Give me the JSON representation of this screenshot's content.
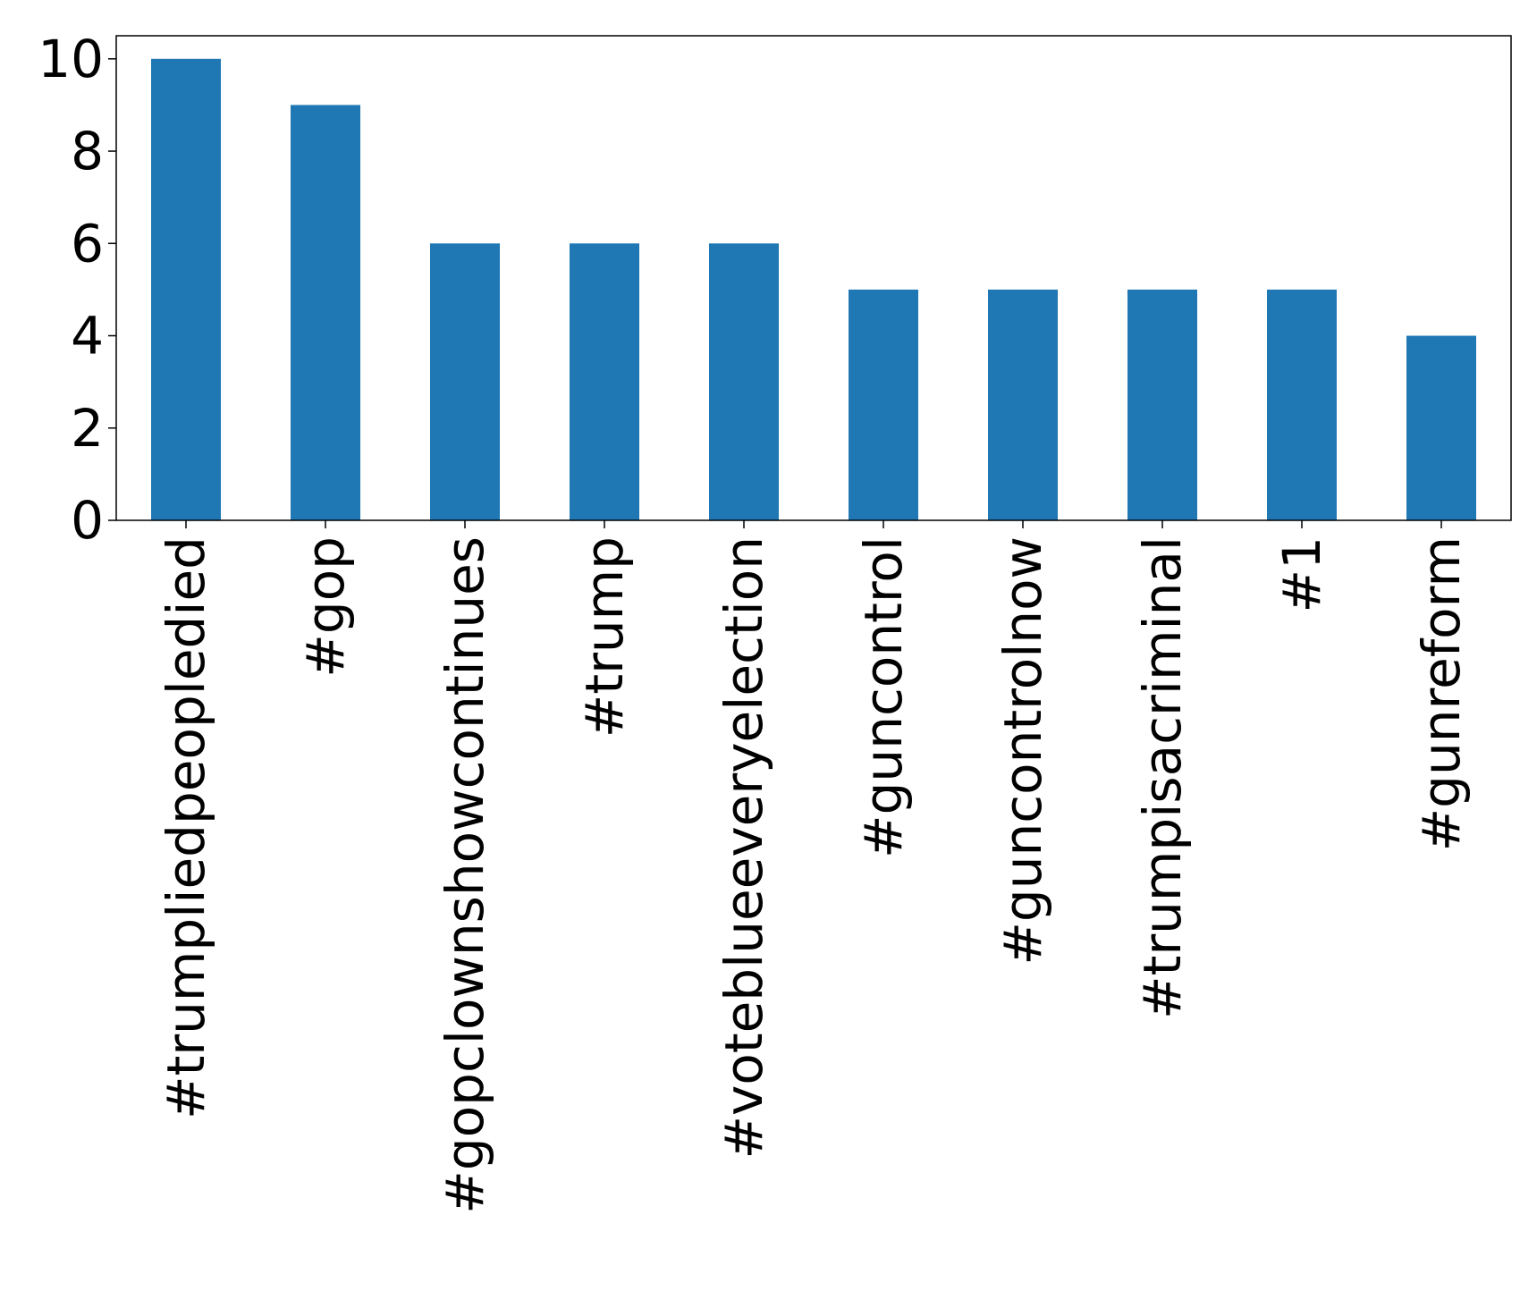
{
  "chart_data": {
    "type": "bar",
    "title": "",
    "xlabel": "",
    "ylabel": "",
    "categories": [
      "#trumpliedpeopledied",
      "#gop",
      "#gopclownshowcontinues",
      "#trump",
      "#voteblueeveryelection",
      "#guncontrol",
      "#guncontrolnow",
      "#trumpisacriminal",
      "#1",
      "#gunreform"
    ],
    "values": [
      10,
      9,
      6,
      6,
      6,
      5,
      5,
      5,
      5,
      4
    ],
    "ylim": [
      0,
      10.5
    ],
    "yticks": [
      0,
      2,
      4,
      6,
      8,
      10
    ],
    "ytick_labels": [
      "0",
      "2",
      "4",
      "6",
      "8",
      "10"
    ],
    "grid": false,
    "bar_color": "#1f77b4"
  }
}
